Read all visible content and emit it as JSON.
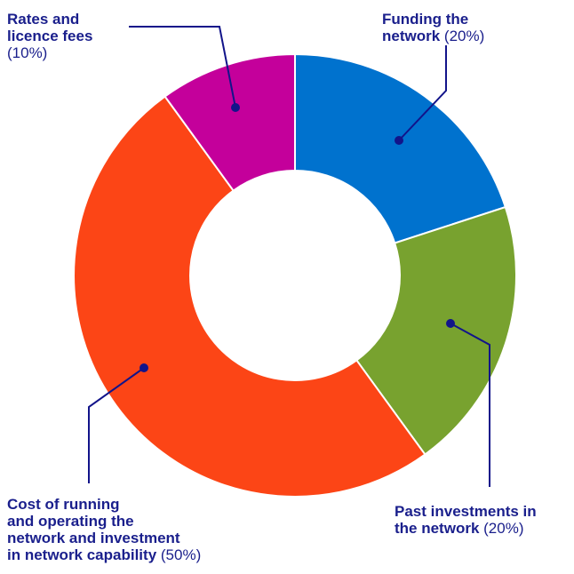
{
  "chart_data": {
    "type": "pie",
    "donut": true,
    "slices": [
      {
        "name_lines": [
          "Funding the",
          "network"
        ],
        "value": 20,
        "pct_label": "(20%)",
        "color": "#0072CE"
      },
      {
        "name_lines": [
          "Past investments in",
          "the network"
        ],
        "value": 20,
        "pct_label": "(20%)",
        "color": "#78A22F"
      },
      {
        "name_lines": [
          "Cost of running",
          "and operating the",
          "network and investment",
          "in network capability"
        ],
        "value": 50,
        "pct_label": "(50%)",
        "color": "#FC4516"
      },
      {
        "name_lines": [
          "Rates and",
          "licence fees"
        ],
        "value": 10,
        "pct_label": "(10%)",
        "color": "#C4009B"
      }
    ],
    "leader_color": "#12148a",
    "label_color": "#1a1f8c"
  }
}
